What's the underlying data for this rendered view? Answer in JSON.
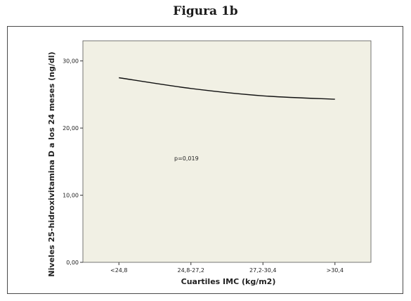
{
  "figure_title": "Figura 1b",
  "chart_data": {
    "type": "line",
    "title": "",
    "xlabel": "Cuartiles IMC (kg/m2)",
    "ylabel": "Niveles 25-hidroxivitamina D a los 24 meses (ng/dl)",
    "categories": [
      "<24,8",
      "24,8-27,2",
      "27,2-30,4",
      ">30,4"
    ],
    "series": [
      {
        "values": [
          27.5,
          25.9,
          24.8,
          24.3
        ]
      }
    ],
    "ylim": [
      0,
      33
    ],
    "yticks": [
      0,
      10,
      20,
      30
    ],
    "ytick_labels": [
      "0,00",
      "10,00",
      "20,00",
      "30,00"
    ],
    "annotation": "p=0,019",
    "grid": false,
    "plot_background": "#f1f0e4",
    "line_color": "#111111"
  }
}
